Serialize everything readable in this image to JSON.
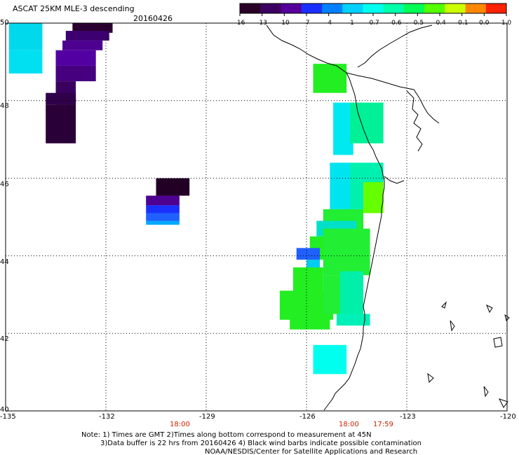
{
  "title": "ASCAT 25KM MLE-3 descending",
  "date": "20160426",
  "colorbar": {
    "labels": [
      "-16",
      "-13",
      "-10",
      "-7",
      "-4",
      "-1",
      "-0.7",
      "-0.6",
      "-0.5",
      "-0.4",
      "-0.1",
      "0.0",
      "1.0"
    ],
    "colors": [
      "#2a0029",
      "#3c0060",
      "#55009a",
      "#1a2fff",
      "#0080ff",
      "#00d0ff",
      "#00ffee",
      "#00ffaa",
      "#00ff55",
      "#55ff00",
      "#ccff00",
      "#ff8800",
      "#ff2200"
    ]
  },
  "y_ticks": [
    "50",
    "48",
    "46",
    "44",
    "42",
    "40"
  ],
  "x_ticks": [
    "-135",
    "-132",
    "-129",
    "-126",
    "-123",
    "-120"
  ],
  "time_labels": [
    "18:00",
    "18:00",
    "17:59"
  ],
  "notes": [
    "Note: 1) Times are GMT 2)Times along bottom correspond to measurement at 45N",
    "3)Data buffer is 22 hrs from 20160426 4) Black wind barbs indicate possible contamination",
    "NOAA/NESDIS/Center for Satellite Applications and Research"
  ],
  "map_data": {
    "lon_range": [
      -135,
      -120
    ],
    "lat_range": [
      40,
      50
    ],
    "swaths": [
      {
        "name": "nw-strip",
        "cells": [
          {
            "lon": [
              -134.9,
              -133.9
            ],
            "lat": [
              49.3,
              50.0
            ],
            "color": "#00d8ec"
          },
          {
            "lon": [
              -134.9,
              -133.9
            ],
            "lat": [
              48.7,
              49.3
            ],
            "color": "#00e0f0"
          },
          {
            "lon": [
              -133.0,
              -131.8
            ],
            "lat": [
              49.75,
              50.0
            ],
            "color": "#2a0030"
          },
          {
            "lon": [
              -133.2,
              -131.9
            ],
            "lat": [
              49.55,
              49.8
            ],
            "color": "#3d0070"
          },
          {
            "lon": [
              -133.3,
              -132.1
            ],
            "lat": [
              49.3,
              49.55
            ],
            "color": "#4e0090"
          },
          {
            "lon": [
              -133.5,
              -132.3
            ],
            "lat": [
              48.9,
              49.3
            ],
            "color": "#5300a3"
          },
          {
            "lon": [
              -133.5,
              -132.3
            ],
            "lat": [
              48.5,
              48.9
            ],
            "color": "#46007f"
          },
          {
            "lon": [
              -133.5,
              -132.9
            ],
            "lat": [
              47.9,
              48.5
            ],
            "color": "#3a0060"
          },
          {
            "lon": [
              -133.8,
              -132.9
            ],
            "lat": [
              47.9,
              48.2
            ],
            "color": "#30004a"
          },
          {
            "lon": [
              -133.8,
              -132.9
            ],
            "lat": [
              46.9,
              47.9
            ],
            "color": "#2a0038"
          }
        ]
      },
      {
        "name": "mid-patch",
        "cells": [
          {
            "lon": [
              -130.5,
              -129.5
            ],
            "lat": [
              45.55,
              46.0
            ],
            "color": "#220026"
          },
          {
            "lon": [
              -130.8,
              -129.8
            ],
            "lat": [
              45.3,
              45.55
            ],
            "color": "#4e0090"
          },
          {
            "lon": [
              -130.8,
              -129.8
            ],
            "lat": [
              45.1,
              45.3
            ],
            "color": "#1a30ff"
          },
          {
            "lon": [
              -130.8,
              -129.8
            ],
            "lat": [
              44.9,
              45.1
            ],
            "color": "#2060ff"
          },
          {
            "lon": [
              -130.8,
              -129.8
            ],
            "lat": [
              44.8,
              44.9
            ],
            "color": "#00aaff"
          }
        ]
      },
      {
        "name": "coastal-swath",
        "cells": [
          {
            "lon": [
              -125.8,
              -124.8
            ],
            "lat": [
              48.2,
              48.95
            ],
            "color": "#22ee22"
          },
          {
            "lon": [
              -125.2,
              -124.6
            ],
            "lat": [
              46.6,
              47.95
            ],
            "color": "#00e8f0"
          },
          {
            "lon": [
              -124.7,
              -123.7
            ],
            "lat": [
              46.9,
              47.95
            ],
            "color": "#00f098"
          },
          {
            "lon": [
              -124.8,
              -123.7
            ],
            "lat": [
              45.2,
              46.4
            ],
            "color": "#00f0b0"
          },
          {
            "lon": [
              -125.3,
              -124.7
            ],
            "lat": [
              45.2,
              46.4
            ],
            "color": "#00e4f0"
          },
          {
            "lon": [
              -124.3,
              -123.7
            ],
            "lat": [
              45.1,
              45.9
            ],
            "color": "#66ff00"
          },
          {
            "lon": [
              -125.5,
              -124.3
            ],
            "lat": [
              44.5,
              45.2
            ],
            "color": "#22ee33"
          },
          {
            "lon": [
              -125.7,
              -124.5
            ],
            "lat": [
              44.5,
              44.9
            ],
            "color": "#00e0c8"
          },
          {
            "lon": [
              -125.9,
              -124.8
            ],
            "lat": [
              43.9,
              44.5
            ],
            "color": "#22ee22"
          },
          {
            "lon": [
              -126.3,
              -125.6
            ],
            "lat": [
              43.9,
              44.2
            ],
            "color": "#2060ff"
          },
          {
            "lon": [
              -126.0,
              -125.6
            ],
            "lat": [
              43.6,
              43.9
            ],
            "color": "#00ccee"
          },
          {
            "lon": [
              -125.5,
              -124.1
            ],
            "lat": [
              43.5,
              44.7
            ],
            "color": "#22ee33"
          },
          {
            "lon": [
              -126.4,
              -125.5
            ],
            "lat": [
              42.9,
              43.7
            ],
            "color": "#22ee22"
          },
          {
            "lon": [
              -126.8,
              -125.2
            ],
            "lat": [
              42.35,
              43.1
            ],
            "color": "#22ee22"
          },
          {
            "lon": [
              -125.5,
              -124.4
            ],
            "lat": [
              42.5,
              43.5
            ],
            "color": "#22ee33"
          },
          {
            "lon": [
              -125.0,
              -124.3
            ],
            "lat": [
              42.5,
              43.6
            ],
            "color": "#00f0aa"
          },
          {
            "lon": [
              -126.5,
              -125.3
            ],
            "lat": [
              42.1,
              42.5
            ],
            "color": "#22ee22"
          },
          {
            "lon": [
              -125.1,
              -124.1
            ],
            "lat": [
              42.2,
              42.5
            ],
            "color": "#00f0b8"
          },
          {
            "lon": [
              -125.8,
              -124.8
            ],
            "lat": [
              40.95,
              41.7
            ],
            "color": "#00ffee"
          }
        ]
      }
    ]
  }
}
